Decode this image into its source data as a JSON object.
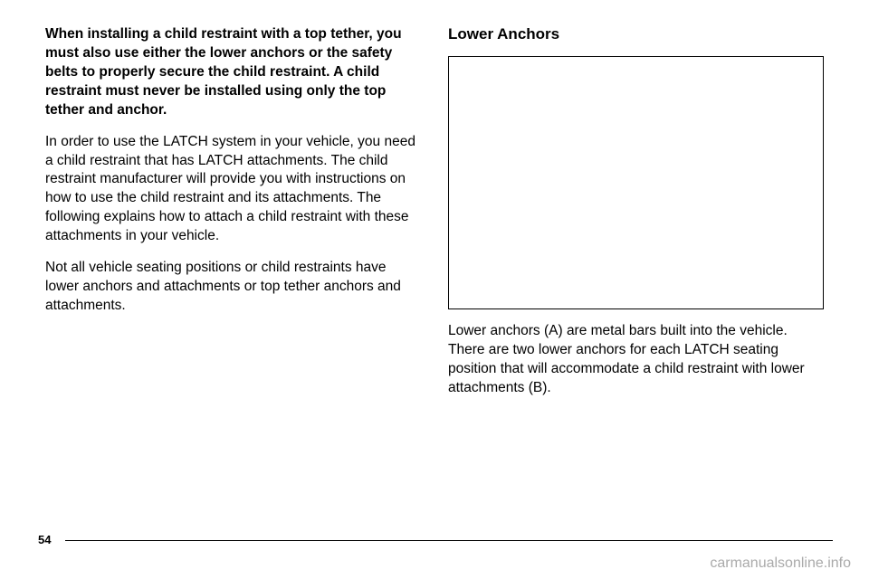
{
  "left_column": {
    "p1": "When installing a child restraint with a top tether, you must also use either the lower anchors or the safety belts to properly secure the child restraint. A child restraint must never be installed using only the top tether and anchor.",
    "p2": "In order to use the LATCH system in your vehicle, you need a child restraint that has LATCH attachments. The child restraint manufacturer will provide you with instructions on how to use the child restraint and its attachments. The following explains how to attach a child restraint with these attachments in your vehicle.",
    "p3": "Not all vehicle seating positions or child restraints have lower anchors and attachments or top tether anchors and attachments."
  },
  "right_column": {
    "title": "Lower Anchors",
    "caption": "Lower anchors (A) are metal bars built into the vehicle. There are two lower anchors for each LATCH seating position that will accommodate a child restraint with lower attachments (B)."
  },
  "page_number": "54",
  "watermark": "carmanualsonline.info"
}
